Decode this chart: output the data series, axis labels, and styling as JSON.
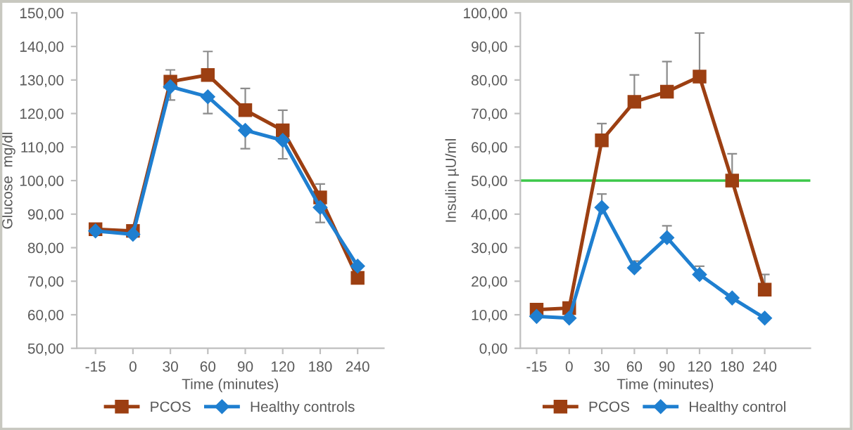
{
  "chart_data": [
    {
      "type": "line",
      "ylabel": "Glucose  mg/dl",
      "xlabel": "Time (minutes)",
      "categories": [
        "-15",
        "0",
        "30",
        "60",
        "90",
        "120",
        "180",
        "240"
      ],
      "ylim": [
        50,
        150
      ],
      "yticks": [
        {
          "value": 50,
          "label": "50,00"
        },
        {
          "value": 60,
          "label": "60,00"
        },
        {
          "value": 70,
          "label": "70,00"
        },
        {
          "value": 80,
          "label": "80,00"
        },
        {
          "value": 90,
          "label": "90,00"
        },
        {
          "value": 100,
          "label": "100,00"
        },
        {
          "value": 110,
          "label": "110,00"
        },
        {
          "value": 120,
          "label": "120,00"
        },
        {
          "value": 130,
          "label": "130,00"
        },
        {
          "value": 140,
          "label": "140,00"
        },
        {
          "value": 150,
          "label": "150,00"
        }
      ],
      "grid": false,
      "legend": "bottom",
      "series": [
        {
          "name": "PCOS",
          "color": "#9c3f12",
          "marker": "square",
          "values": [
            85.5,
            85,
            129.5,
            131.5,
            121,
            115,
            95,
            71
          ],
          "errors": [
            null,
            null,
            [
              129.5,
              133
            ],
            [
              131.5,
              138.5
            ],
            [
              121,
              127.5
            ],
            [
              115,
              121
            ],
            [
              95,
              99
            ],
            null
          ]
        },
        {
          "name": "Healthy controls",
          "color": "#1f7fd0",
          "marker": "diamond",
          "values": [
            85,
            84,
            128,
            125,
            115,
            112,
            92,
            74.5
          ],
          "errors": [
            null,
            null,
            [
              124,
              128
            ],
            [
              120,
              125
            ],
            [
              109.5,
              115
            ],
            [
              106.5,
              112
            ],
            [
              87.5,
              92
            ],
            null
          ]
        }
      ]
    },
    {
      "type": "line",
      "ylabel": "Insulin µU/ml",
      "xlabel": "Time (minutes)",
      "categories": [
        "-15",
        "0",
        "30",
        "60",
        "90",
        "120",
        "180",
        "240"
      ],
      "ylim": [
        0,
        100
      ],
      "yticks": [
        {
          "value": 0,
          "label": "0,00"
        },
        {
          "value": 10,
          "label": "10,00"
        },
        {
          "value": 20,
          "label": "20,00"
        },
        {
          "value": 30,
          "label": "30,00"
        },
        {
          "value": 40,
          "label": "40,00"
        },
        {
          "value": 50,
          "label": "50,00"
        },
        {
          "value": 60,
          "label": "60,00"
        },
        {
          "value": 70,
          "label": "70,00"
        },
        {
          "value": 80,
          "label": "80,00"
        },
        {
          "value": 90,
          "label": "90,00"
        },
        {
          "value": 100,
          "label": "100,00"
        }
      ],
      "grid": false,
      "legend": "bottom",
      "ref_lines": [
        {
          "axis": "y",
          "value": 50,
          "color": "#3cc84a"
        }
      ],
      "series": [
        {
          "name": "PCOS",
          "color": "#9c3f12",
          "marker": "square",
          "values": [
            11.5,
            12,
            62,
            73.5,
            76.5,
            81,
            50,
            17.5
          ],
          "errors": [
            null,
            null,
            [
              62,
              67
            ],
            [
              73.5,
              81.5
            ],
            [
              76.5,
              85.5
            ],
            [
              81,
              94
            ],
            [
              50,
              58
            ],
            [
              17.5,
              22
            ]
          ]
        },
        {
          "name": "Healthy control",
          "color": "#1f7fd0",
          "marker": "diamond",
          "values": [
            9.5,
            9,
            42,
            24,
            33,
            22,
            15,
            9
          ],
          "errors": [
            null,
            null,
            [
              42,
              46
            ],
            [
              24,
              26
            ],
            [
              33,
              36.5
            ],
            [
              22,
              24.5
            ],
            null,
            null
          ]
        }
      ]
    }
  ]
}
